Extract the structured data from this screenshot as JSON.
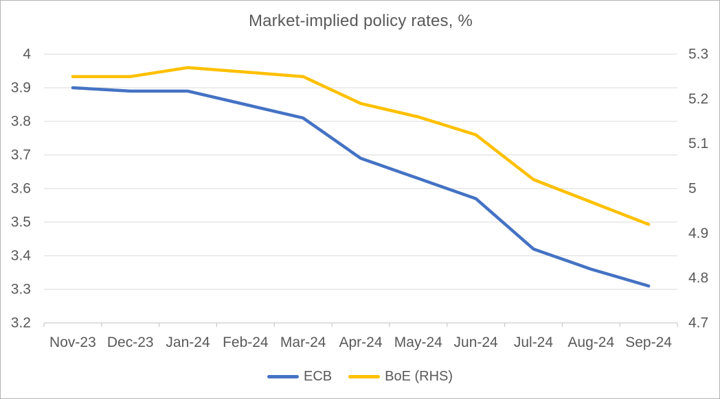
{
  "title": "Market-implied policy rates, %",
  "colors": {
    "ecb_line": "#4472C4",
    "boe_line": "#FFC000",
    "text": "#595959",
    "gridline": "#D9D9D9",
    "axis_line": "#BFBFBF",
    "background": "#FFFFFF",
    "frame_border": "#B4B4B4"
  },
  "legend": {
    "items": [
      {
        "label": "ECB",
        "color": "#4472C4"
      },
      {
        "label": "BoE (RHS)",
        "color": "#FFC000"
      }
    ],
    "position": "bottom"
  },
  "chart_data": {
    "type": "line",
    "title": "Market-implied policy rates, %",
    "categories": [
      "Nov-23",
      "Dec-23",
      "Jan-24",
      "Feb-24",
      "Mar-24",
      "Apr-24",
      "May-24",
      "Jun-24",
      "Jul-24",
      "Aug-24",
      "Sep-24"
    ],
    "series": [
      {
        "name": "ECB",
        "axis": "left",
        "color": "#4472C4",
        "values": [
          3.9,
          3.89,
          3.89,
          3.85,
          3.81,
          3.69,
          3.63,
          3.57,
          3.42,
          3.36,
          3.31
        ]
      },
      {
        "name": "BoE (RHS)",
        "axis": "right",
        "color": "#FFC000",
        "values": [
          5.25,
          5.25,
          5.27,
          5.26,
          5.25,
          5.19,
          5.16,
          5.12,
          5.02,
          4.97,
          4.92
        ]
      }
    ],
    "left_axis": {
      "min": 3.2,
      "max": 4.0,
      "tick_labels": [
        "4",
        "3.9",
        "3.8",
        "3.7",
        "3.6",
        "3.5",
        "3.4",
        "3.3",
        "3.2"
      ]
    },
    "right_axis": {
      "min": 4.7,
      "max": 5.3,
      "tick_labels": [
        "5.3",
        "5.2",
        "5.1",
        "5",
        "4.9",
        "4.8",
        "4.7"
      ]
    },
    "grid": true,
    "legend_position": "bottom"
  }
}
